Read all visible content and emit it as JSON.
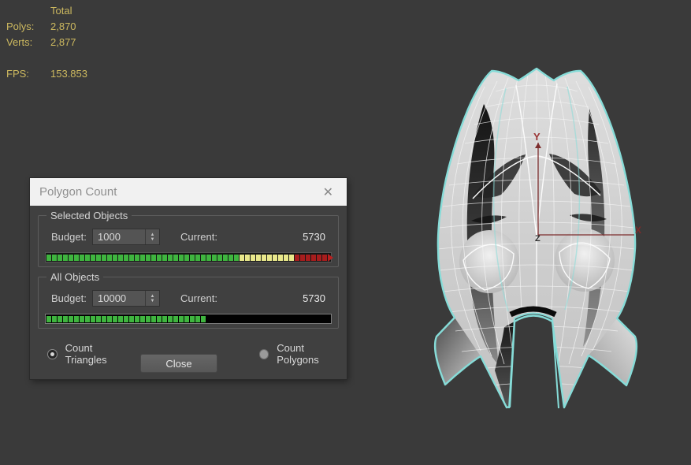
{
  "viewport": {
    "stats": {
      "total_label": "Total",
      "polys_label": "Polys:",
      "polys_value": "2,870",
      "verts_label": "Verts:",
      "verts_value": "2,877",
      "fps_label": "FPS:",
      "fps_value": "153.853"
    },
    "axis": {
      "x": "X",
      "y": "Y",
      "z": "Z"
    },
    "selection_outline_color": "#86dcd8",
    "axis_color": "#7c2c2c"
  },
  "dialog": {
    "title": "Polygon Count",
    "close_icon": "✕",
    "groups": [
      {
        "label": "Selected Objects",
        "budget_label": "Budget:",
        "budget_value": "1000",
        "current_label": "Current:",
        "current_value": "5730",
        "bar": {
          "segments": [
            {
              "color": "#3fb53f",
              "count": 35
            },
            {
              "color": "#e9e88b",
              "count": 10
            },
            {
              "color": "#a81d1d",
              "count": 6
            }
          ],
          "overflow": true
        }
      },
      {
        "label": "All Objects",
        "budget_label": "Budget:",
        "budget_value": "10000",
        "current_label": "Current:",
        "current_value": "5730",
        "bar": {
          "segments": [
            {
              "color": "#3fb53f",
              "count": 29
            }
          ],
          "overflow": false
        }
      }
    ],
    "radios": [
      {
        "label": "Count Triangles",
        "selected": true
      },
      {
        "label": "Count Polygons",
        "selected": false
      }
    ],
    "close_label": "Close"
  },
  "icons": {
    "spinner_up": "▲",
    "spinner_down": "▼"
  },
  "colors": {
    "stats_text": "#cdb95f",
    "bar_green": "#3fb53f",
    "bar_yellow": "#e9e88b",
    "bar_red": "#a81d1d",
    "titlebar_bg": "#f1f1f1",
    "dialog_bg": "#404040",
    "viewport_bg": "#3a3a3a"
  }
}
